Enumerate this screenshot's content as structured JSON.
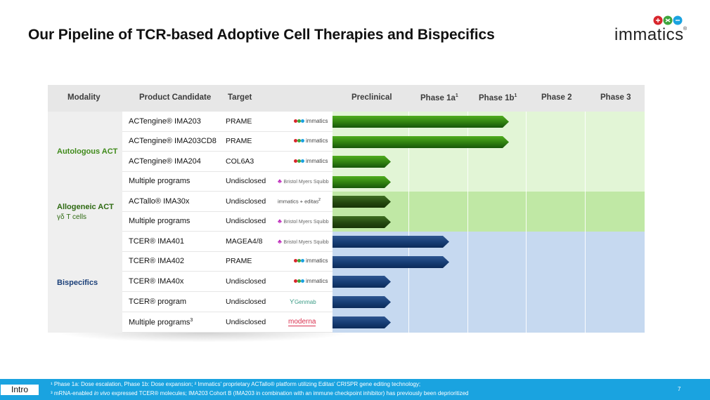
{
  "title": "Our Pipeline of TCR-based Adoptive Cell Therapies and Bispecifics",
  "brand": {
    "name": "immatics",
    "colors": {
      "red": "#d8262d",
      "green": "#3ea53c",
      "blue": "#1aa3e0"
    }
  },
  "table": {
    "headers": {
      "modality": "Modality",
      "product_candidate": "Product Candidate",
      "target": "Target",
      "preclinical": "Preclinical",
      "phase1a": "Phase 1a",
      "phase1a_sup": "1",
      "phase1b": "Phase 1b",
      "phase1b_sup": "1",
      "phase2": "Phase 2",
      "phase3": "Phase 3"
    },
    "modalities": [
      {
        "label": "Autologous ACT",
        "sub": "",
        "color": "#3f8a1a"
      },
      {
        "label": "Allogeneic ACT",
        "sub": "γδ T cells",
        "color": "#2e6a12"
      },
      {
        "label": "Bispecifics",
        "sub": "",
        "color": "#1a3f78"
      }
    ],
    "rows": [
      {
        "candidate": "ACTengine® IMA203",
        "sup": "",
        "target": "PRAME",
        "partner": "immatics",
        "stage": "Phase 1b",
        "progress": 0.565,
        "color": "green"
      },
      {
        "candidate": "ACTengine® IMA203CD8",
        "sup": "",
        "target": "PRAME",
        "partner": "immatics",
        "stage": "Phase 1b",
        "progress": 0.565,
        "color": "green"
      },
      {
        "candidate": "ACTengine® IMA204",
        "sup": "",
        "target": "COL6A3",
        "partner": "immatics",
        "stage": "Preclinical",
        "progress": 0.187,
        "color": "green"
      },
      {
        "candidate": "Multiple programs",
        "sup": "",
        "target": "Undisclosed",
        "partner": "Bristol Myers Squibb",
        "stage": "Preclinical",
        "progress": 0.187,
        "color": "green"
      },
      {
        "candidate": "ACTallo® IMA30x",
        "sup": "",
        "target": "Undisclosed",
        "partner": "immatics + editas",
        "partner_sup": "2",
        "stage": "Preclinical",
        "progress": 0.187,
        "color": "dgreen"
      },
      {
        "candidate": "Multiple programs",
        "sup": "",
        "target": "Undisclosed",
        "partner": "Bristol Myers Squibb",
        "stage": "Preclinical",
        "progress": 0.187,
        "color": "dgreen"
      },
      {
        "candidate": "TCER® IMA401",
        "sup": "",
        "target": "MAGEA4/8",
        "partner": "Bristol Myers Squibb",
        "stage": "Phase 1a",
        "progress": 0.373,
        "color": "blue"
      },
      {
        "candidate": "TCER® IMA402",
        "sup": "",
        "target": "PRAME",
        "partner": "immatics",
        "stage": "Phase 1a",
        "progress": 0.373,
        "color": "blue"
      },
      {
        "candidate": "TCER® IMA40x",
        "sup": "",
        "target": "Undisclosed",
        "partner": "immatics",
        "stage": "Preclinical",
        "progress": 0.187,
        "color": "blue"
      },
      {
        "candidate": "TCER® program",
        "sup": "",
        "target": "Undisclosed",
        "partner": "Genmab",
        "stage": "Preclinical",
        "progress": 0.187,
        "color": "blue"
      },
      {
        "candidate": "Multiple programs",
        "sup": "3",
        "target": "Undisclosed",
        "partner": "moderna",
        "stage": "Preclinical",
        "progress": 0.187,
        "color": "blue"
      }
    ]
  },
  "footer": {
    "tab": "Intro",
    "note1": "¹ Phase 1a: Dose escalation, Phase 1b: Dose expansion; ² Immatics' proprietary ACTallo® platform utilizing Editas' CRISPR gene editing technology;",
    "note2_pre": "³ mRNA-enabled ",
    "note2_em": "in vivo",
    "note2_post": " expressed TCER® molecules; IMA203 Cohort B (IMA203 in combination with an immune checkpoint inhibitor) has previously been deprioritized",
    "page": "7"
  }
}
